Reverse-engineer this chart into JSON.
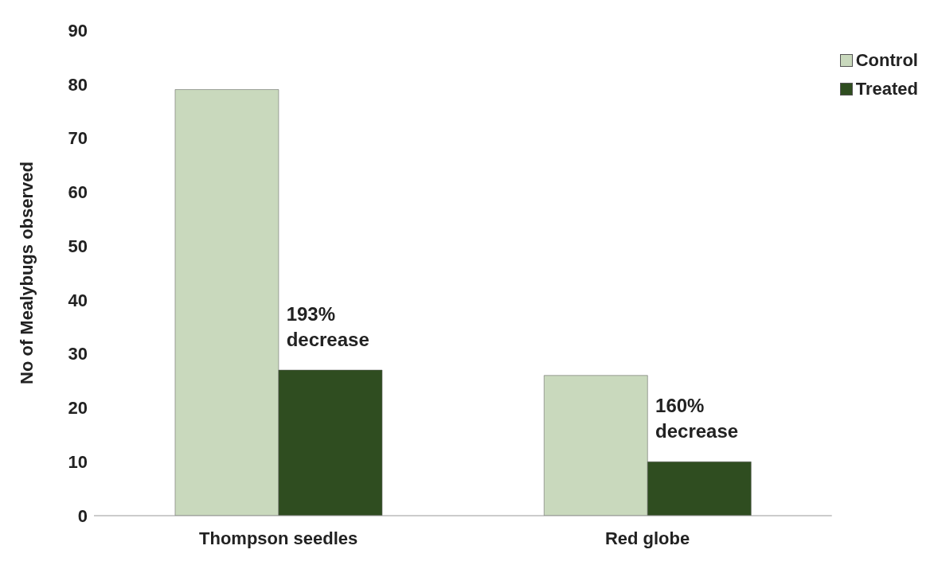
{
  "chart_data": {
    "type": "bar",
    "ylabel": "No of Mealybugs observed",
    "categories": [
      "Thompson seedles",
      "Red globe"
    ],
    "series": [
      {
        "name": "Control",
        "color": "#c9d9bd",
        "values": [
          79,
          26
        ]
      },
      {
        "name": "Treated",
        "color": "#2f4d20",
        "values": [
          27,
          10
        ]
      }
    ],
    "ylim": [
      0,
      90
    ],
    "yticks": [
      0,
      10,
      20,
      30,
      40,
      50,
      60,
      70,
      80,
      90
    ],
    "grid": false,
    "legend": "top right",
    "annotations": [
      {
        "text": "193% decrease",
        "x": "Thompson seedles",
        "y": 27
      },
      {
        "text": "160% decrease",
        "x": "Red globe",
        "y": 10
      }
    ]
  }
}
